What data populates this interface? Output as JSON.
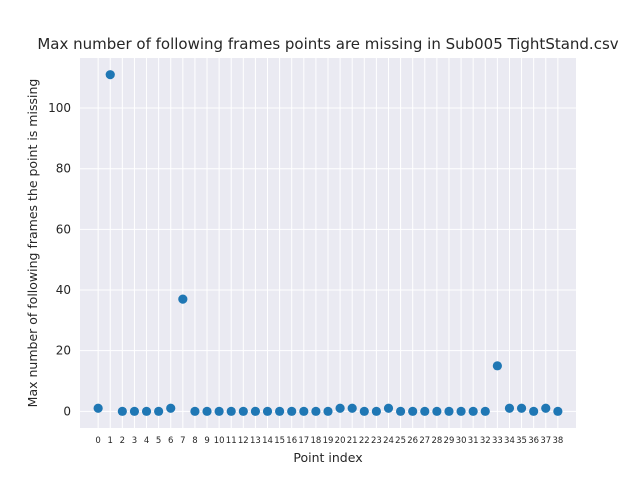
{
  "chart_data": {
    "type": "scatter",
    "title": "Max number of following frames points are missing in Sub005 TightStand.csv",
    "xlabel": "Point index",
    "ylabel": "Max number of following frames the point is missing",
    "x": [
      0,
      1,
      2,
      3,
      4,
      5,
      6,
      7,
      8,
      9,
      10,
      11,
      12,
      13,
      14,
      15,
      16,
      17,
      18,
      19,
      20,
      21,
      22,
      23,
      24,
      25,
      26,
      27,
      28,
      29,
      30,
      31,
      32,
      33,
      34,
      35,
      36,
      37,
      38
    ],
    "x_tick_labels": [
      "0",
      "1",
      "2",
      "3",
      "4",
      "5",
      "6",
      "7",
      "8",
      "9",
      "10",
      "11",
      "12",
      "13",
      "14",
      "15",
      "16",
      "17",
      "18",
      "19",
      "20",
      "21",
      "22",
      "23",
      "24",
      "25",
      "26",
      "27",
      "28",
      "29",
      "30",
      "31",
      "32",
      "33",
      "34",
      "35",
      "36",
      "37",
      "38"
    ],
    "y": [
      1,
      111,
      0,
      0,
      0,
      0,
      1,
      37,
      0,
      0,
      0,
      0,
      0,
      0,
      0,
      0,
      0,
      0,
      0,
      0,
      1,
      1,
      0,
      0,
      1,
      0,
      0,
      0,
      0,
      0,
      0,
      0,
      0,
      15,
      1,
      1,
      0,
      1,
      0
    ],
    "y_ticks": [
      0,
      20,
      40,
      60,
      80,
      100
    ],
    "y_tick_labels": [
      "0",
      "20",
      "40",
      "60",
      "80",
      "100"
    ],
    "ylim": [
      -5.5,
      116.5
    ],
    "xlim": [
      -1.5,
      39.5
    ],
    "grid": true,
    "colors": {
      "background": "#eaeaf2",
      "grid": "#ffffff",
      "marker": "#1f77b4",
      "text": "#262626"
    }
  }
}
